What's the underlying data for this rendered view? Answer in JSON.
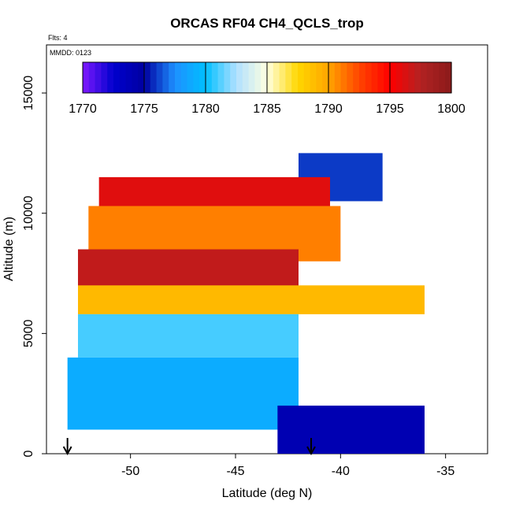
{
  "chart_data": {
    "type": "heatmap",
    "title": "ORCAS RF04 CH4_QCLS_trop",
    "flts_label": "Flts: 4",
    "mmdd_label": "MMDD: 0123",
    "xlabel": "Latitude (deg N)",
    "ylabel": "Altitude (m)",
    "xlim": [
      -54.0,
      -33.0
    ],
    "ylim": [
      0,
      17000
    ],
    "x_ticks": [
      -50,
      -45,
      -40,
      -35
    ],
    "x_tick_labels": [
      "-50",
      "-45",
      "-40",
      "-35"
    ],
    "y_ticks": [
      0,
      5000,
      10000,
      15000
    ],
    "y_tick_labels": [
      "0",
      "5000",
      "10000",
      "15000"
    ],
    "colorbar": {
      "min": 1770,
      "max": 1800,
      "ticks": [
        1770,
        1775,
        1780,
        1785,
        1790,
        1795,
        1800
      ],
      "tick_labels": [
        "1770",
        "1775",
        "1780",
        "1785",
        "1790",
        "1795",
        "1800"
      ],
      "colors": [
        "#7f1aff",
        "#0000cd",
        "#0000a0",
        "#1e90ff",
        "#00bfff",
        "#b0e0ff",
        "#ffffe0",
        "#ffd700",
        "#ffa500",
        "#ff4500",
        "#ff0000",
        "#b22222",
        "#8b1a1a"
      ]
    },
    "layers": [
      {
        "alt_range": [
          10500,
          12500
        ],
        "lat_range": [
          -42.0,
          -38.0
        ],
        "value": 1776
      },
      {
        "alt_range": [
          9500,
          11500
        ],
        "lat_range": [
          -51.5,
          -40.5
        ],
        "value": 1796
      },
      {
        "alt_range": [
          8000,
          10300
        ],
        "lat_range": [
          -52.0,
          -40.0
        ],
        "value": 1791
      },
      {
        "alt_range": [
          6800,
          8500
        ],
        "lat_range": [
          -52.5,
          -42.0
        ],
        "value": 1797
      },
      {
        "alt_range": [
          5800,
          7000
        ],
        "lat_range": [
          -52.5,
          -36.0
        ],
        "value": 1789
      },
      {
        "alt_range": [
          4000,
          5800
        ],
        "lat_range": [
          -52.5,
          -42.0
        ],
        "value": 1781
      },
      {
        "alt_range": [
          1000,
          4000
        ],
        "lat_range": [
          -53.0,
          -42.0
        ],
        "value": 1779
      },
      {
        "alt_range": [
          0,
          2000
        ],
        "lat_range": [
          -43.0,
          -36.0
        ],
        "value": 1774
      }
    ],
    "flight_markers_lat": [
      -53.0,
      -41.4
    ]
  }
}
